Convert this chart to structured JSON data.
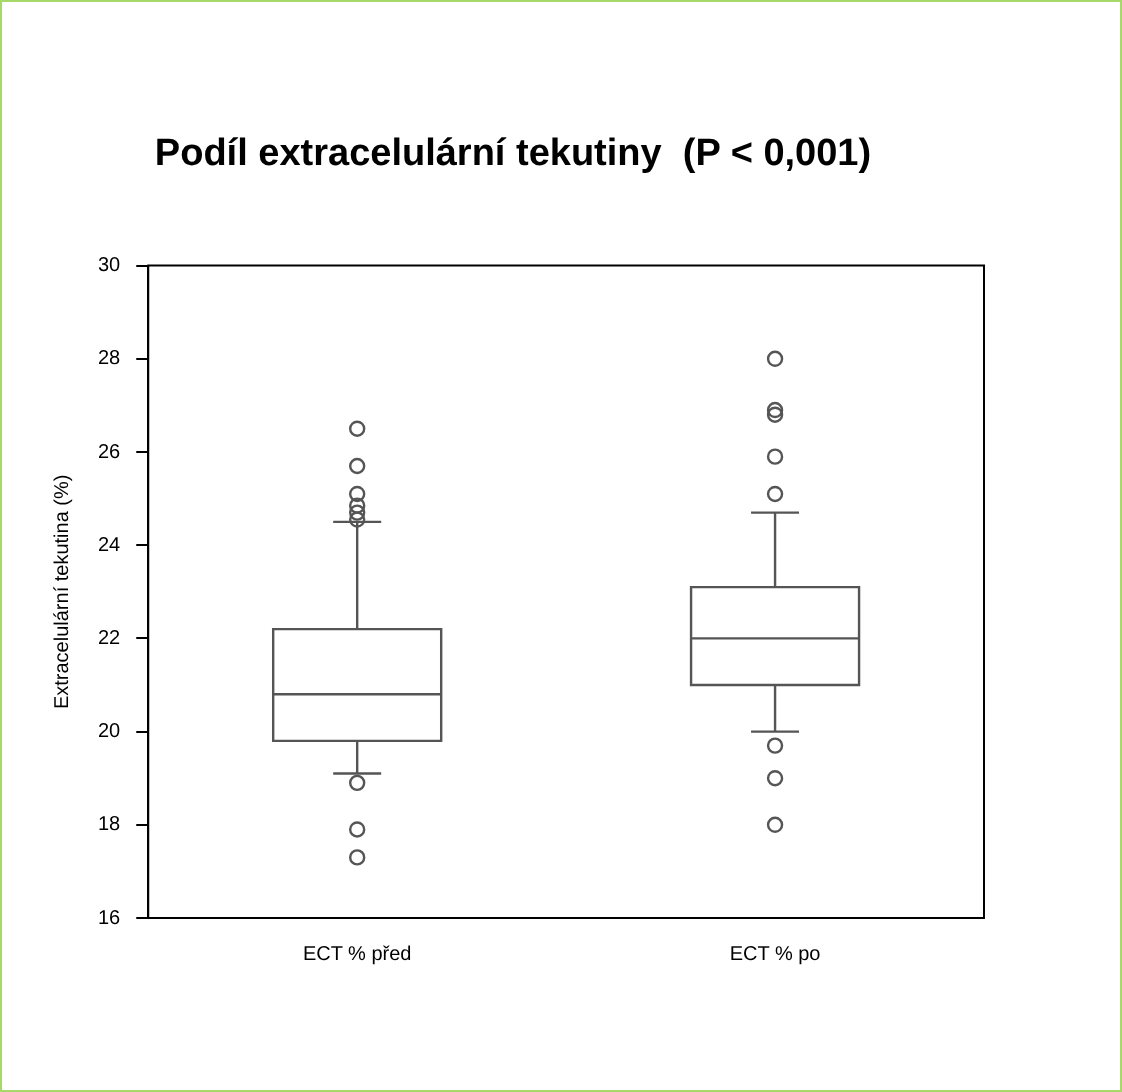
{
  "chart_data": {
    "type": "box",
    "title": "Podíl extracelulární tekutiny  (P < 0,001)",
    "ylabel": "Extracelulární tekutina (%)",
    "categories": [
      "ECT % před",
      "ECT % po"
    ],
    "boxes": [
      {
        "low": 19.1,
        "q1": 19.8,
        "median": 20.8,
        "q3": 22.2,
        "high": 24.5,
        "outliers": [
          26.5,
          25.7,
          25.1,
          24.85,
          24.7,
          24.55,
          18.9,
          17.9,
          17.3
        ]
      },
      {
        "low": 20.0,
        "q1": 21.0,
        "median": 22.0,
        "q3": 23.1,
        "high": 24.7,
        "outliers": [
          28.0,
          26.9,
          26.8,
          25.9,
          25.1,
          19.7,
          19.0,
          18.0
        ]
      }
    ],
    "ylim": [
      16,
      30
    ],
    "yticks": [
      16,
      18,
      20,
      22,
      24,
      26,
      28,
      30
    ],
    "grid": false,
    "legend": false,
    "marker": "circle"
  }
}
